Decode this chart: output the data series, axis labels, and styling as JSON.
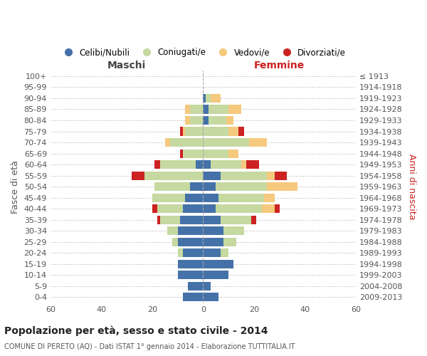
{
  "age_groups": [
    "0-4",
    "5-9",
    "10-14",
    "15-19",
    "20-24",
    "25-29",
    "30-34",
    "35-39",
    "40-44",
    "45-49",
    "50-54",
    "55-59",
    "60-64",
    "65-69",
    "70-74",
    "75-79",
    "80-84",
    "85-89",
    "90-94",
    "95-99",
    "100+"
  ],
  "birth_years": [
    "2009-2013",
    "2004-2008",
    "1999-2003",
    "1994-1998",
    "1989-1993",
    "1984-1988",
    "1979-1983",
    "1974-1978",
    "1969-1973",
    "1964-1968",
    "1959-1963",
    "1954-1958",
    "1949-1953",
    "1944-1948",
    "1939-1943",
    "1934-1938",
    "1929-1933",
    "1924-1928",
    "1919-1923",
    "1914-1918",
    "≤ 1913"
  ],
  "colors": {
    "celibi": "#4472a8",
    "coniugati": "#c5d9a0",
    "vedovi": "#f5c97e",
    "divorziati": "#cc2222"
  },
  "maschi": {
    "celibi": [
      8,
      6,
      10,
      10,
      8,
      10,
      10,
      9,
      8,
      7,
      5,
      0,
      3,
      0,
      0,
      0,
      0,
      0,
      0,
      0,
      0
    ],
    "coniugati": [
      0,
      0,
      0,
      0,
      2,
      2,
      4,
      8,
      10,
      13,
      14,
      23,
      14,
      8,
      13,
      7,
      5,
      5,
      0,
      0,
      0
    ],
    "vedovi": [
      0,
      0,
      0,
      0,
      0,
      0,
      0,
      0,
      0,
      0,
      0,
      0,
      0,
      0,
      2,
      1,
      2,
      2,
      0,
      0,
      0
    ],
    "divorziati": [
      0,
      0,
      0,
      0,
      0,
      0,
      0,
      1,
      2,
      0,
      0,
      5,
      2,
      1,
      0,
      1,
      0,
      0,
      0,
      0,
      0
    ]
  },
  "femmine": {
    "celibi": [
      6,
      3,
      10,
      12,
      7,
      8,
      8,
      7,
      5,
      6,
      5,
      7,
      3,
      0,
      0,
      0,
      2,
      2,
      1,
      0,
      0
    ],
    "coniugati": [
      0,
      0,
      0,
      0,
      3,
      5,
      8,
      12,
      18,
      18,
      20,
      18,
      12,
      10,
      18,
      10,
      7,
      8,
      2,
      0,
      0
    ],
    "vedovi": [
      0,
      0,
      0,
      0,
      0,
      0,
      0,
      0,
      5,
      4,
      12,
      3,
      2,
      4,
      7,
      4,
      3,
      5,
      4,
      0,
      0
    ],
    "divorziati": [
      0,
      0,
      0,
      0,
      0,
      0,
      0,
      2,
      2,
      0,
      0,
      5,
      5,
      0,
      0,
      2,
      0,
      0,
      0,
      0,
      0
    ]
  },
  "xlim": 60,
  "title": "Popolazione per età, sesso e stato civile - 2014",
  "subtitle": "COMUNE DI PERETO (AQ) - Dati ISTAT 1° gennaio 2014 - Elaborazione TUTTITALIA.IT",
  "ylabel_left": "Fasce di età",
  "ylabel_right": "Anni di nascita",
  "maschi_label": "Maschi",
  "femmine_label": "Femmine",
  "legend_labels": [
    "Celibi/Nubili",
    "Coniugati/e",
    "Vedovi/e",
    "Divorziati/e"
  ],
  "bg_color": "#ffffff",
  "grid_color": "#cccccc",
  "title_color": "#222222",
  "subtitle_color": "#555555",
  "maschi_color": "#444444",
  "femmine_color": "#cc2222",
  "right_ylabel_color": "#cc2222"
}
